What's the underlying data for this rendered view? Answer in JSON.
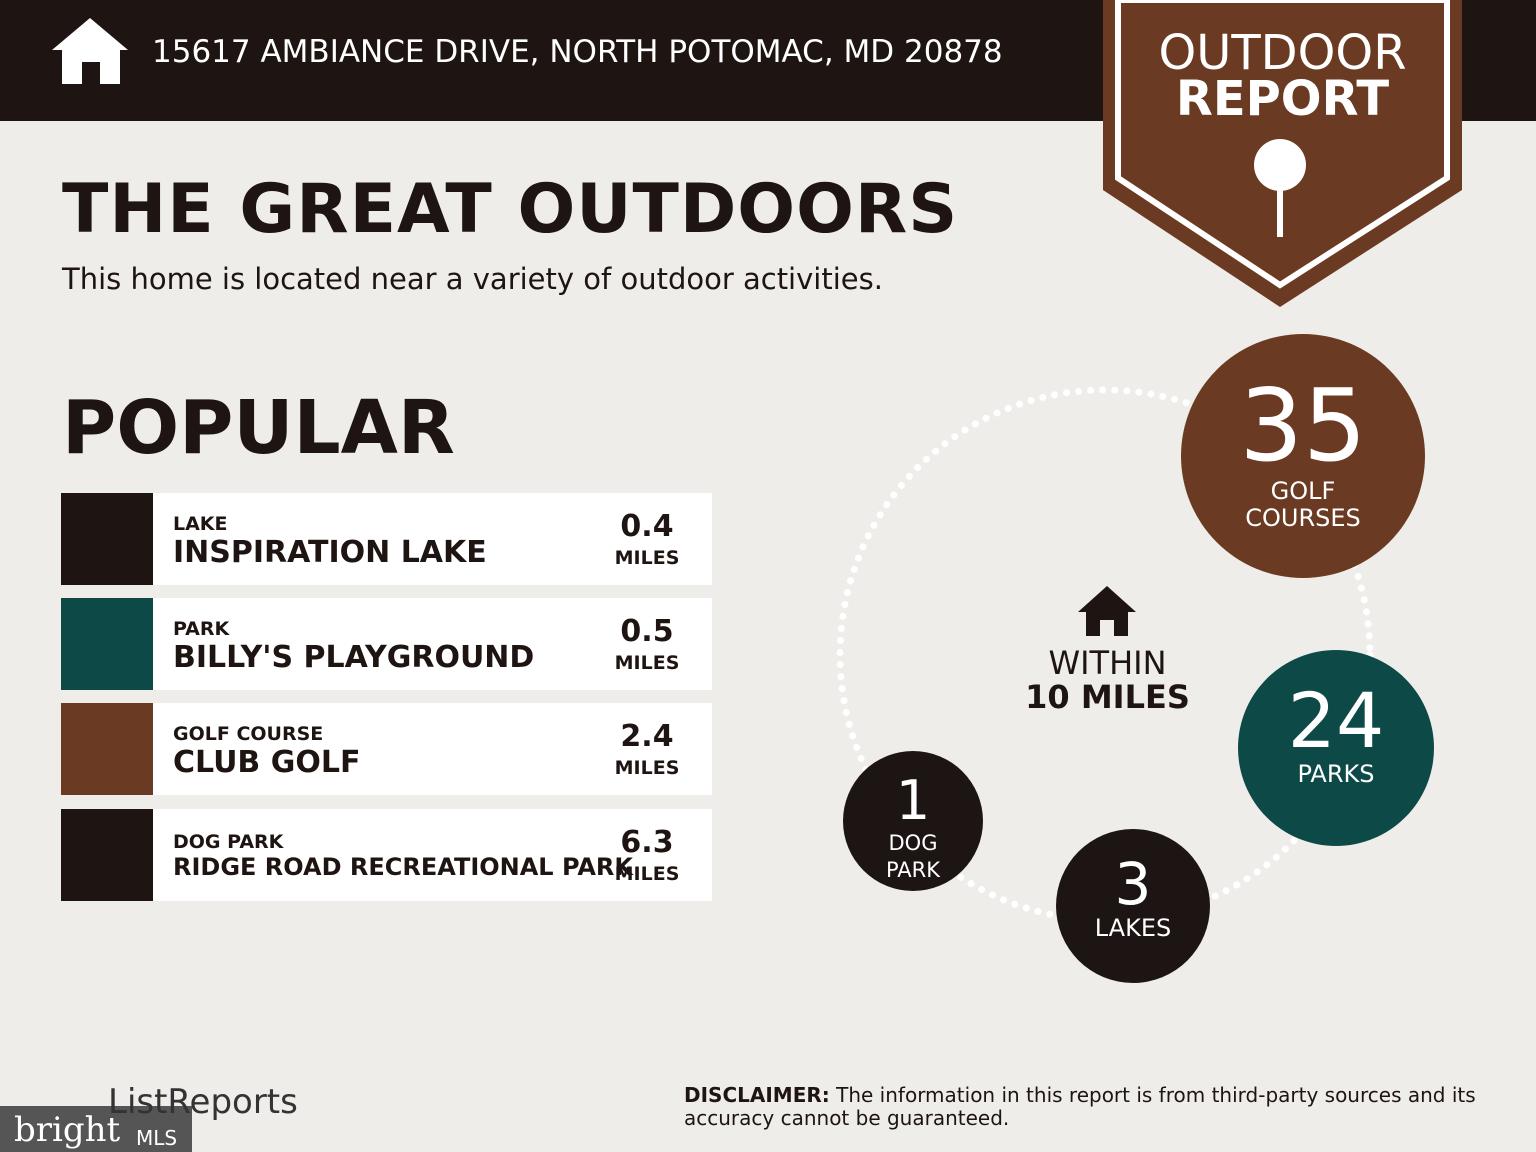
{
  "header": {
    "address": "15617 AMBIANCE DRIVE, NORTH POTOMAC, MD 20878"
  },
  "badge": {
    "line1": "OUTDOOR",
    "line2": "REPORT"
  },
  "title": "THE GREAT OUTDOORS",
  "subtitle": "This home is located near a variety of outdoor activities.",
  "popular": {
    "heading": "POPULAR",
    "items": [
      {
        "category": "LAKE",
        "name": "INSPIRATION LAKE",
        "distance": 0.4,
        "unit": "MILES"
      },
      {
        "category": "PARK",
        "name": "BILLY'S PLAYGROUND",
        "distance": 0.5,
        "unit": "MILES"
      },
      {
        "category": "GOLF COURSE",
        "name": "CLUB GOLF",
        "distance": 2.4,
        "unit": "MILES"
      },
      {
        "category": "DOG PARK",
        "name": "RIDGE ROAD RECREATIONAL PARK",
        "distance": 6.3,
        "unit": "MILES"
      }
    ]
  },
  "within": {
    "line1": "WITHIN",
    "line2": "10 MILES"
  },
  "counts": [
    {
      "number": 35,
      "label": [
        "GOLF",
        "COURSES"
      ]
    },
    {
      "number": 24,
      "label": [
        "PARKS"
      ]
    },
    {
      "number": 3,
      "label": [
        "LAKES"
      ]
    },
    {
      "number": 1,
      "label": [
        "DOG",
        "PARK"
      ]
    }
  ],
  "footer": {
    "brand": "ListReports",
    "disclaimer_label": "DISCLAIMER:",
    "disclaimer": "The information in this report is from third-party sources and its accuracy cannot be guaranteed.",
    "mls_brand": "bright",
    "mls": "MLS"
  }
}
